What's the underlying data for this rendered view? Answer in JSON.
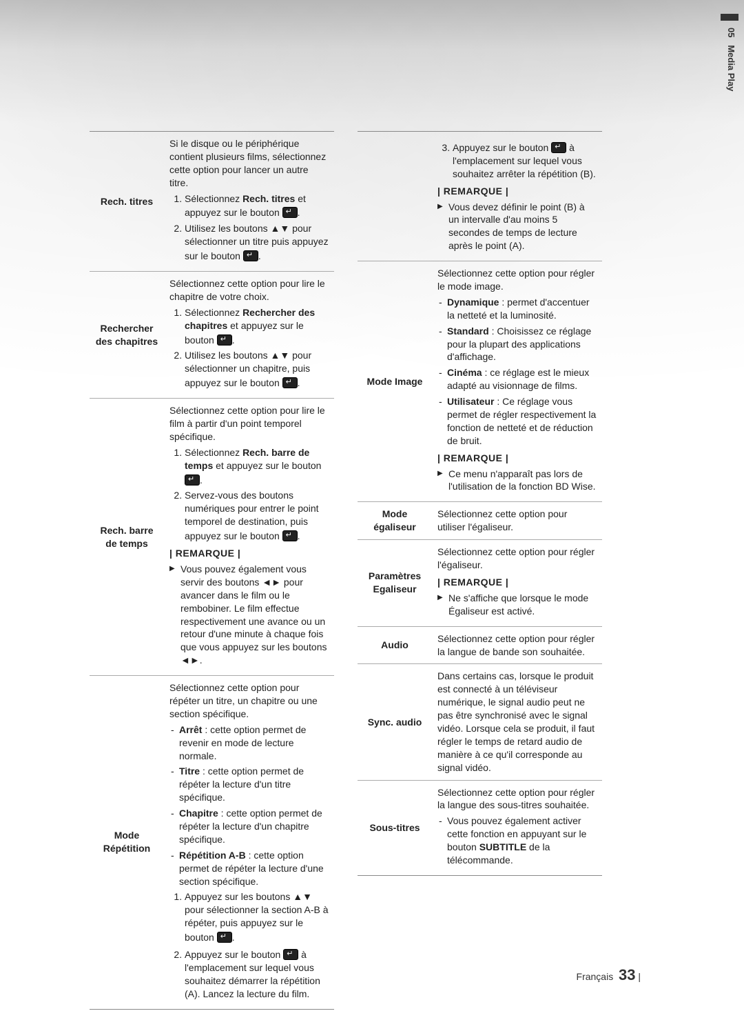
{
  "sideTab": {
    "chapter": "05",
    "label": "Media Play"
  },
  "footer": {
    "lang": "Français",
    "page": "33"
  },
  "remarqueLabel": "| REMARQUE |",
  "left": {
    "rechTitres": {
      "label": "Rech. titres",
      "intro": "Si le disque ou le périphérique contient plusieurs films, sélectionnez cette option pour lancer un autre titre.",
      "step1_a": "Sélectionnez ",
      "step1_b": "Rech. titres",
      "step1_c": " et appuyez sur le bouton ",
      "step2_a": "Utilisez les boutons ▲▼ pour sélectionner un titre puis appuyez sur le bouton "
    },
    "rechChapitres": {
      "label": "Rechercher des chapitres",
      "intro": "Sélectionnez cette option pour lire le chapitre de votre choix.",
      "step1_a": "Sélectionnez ",
      "step1_b": "Rechercher des chapitres",
      "step1_c": " et appuyez sur le bouton ",
      "step2_a": "Utilisez les boutons ▲▼ pour sélectionner un chapitre, puis appuyez sur le bouton "
    },
    "rechBarre": {
      "label": "Rech. barre de temps",
      "intro": "Sélectionnez cette option pour lire le film à partir d'un point temporel spécifique.",
      "step1_a": "Sélectionnez ",
      "step1_b": "Rech. barre de temps",
      "step1_c": " et appuyez sur le bouton ",
      "step2_a": "Servez-vous des boutons numériques pour entrer le point temporel de destination, puis appuyez sur le bouton ",
      "note1": "Vous pouvez également vous servir des boutons ◄► pour avancer dans le film ou le rembobiner. Le film effectue respectivement une avance ou un retour d'une minute à chaque fois que vous appuyez sur les boutons ◄►."
    },
    "modeRep": {
      "label": "Mode Répétition",
      "intro": "Sélectionnez cette option pour répéter un titre, un chapitre ou une section spécifique.",
      "li1_b": "Arrêt",
      "li1_t": " : cette option permet de revenir en mode de lecture normale.",
      "li2_b": "Titre",
      "li2_t": " : cette option permet de répéter la lecture d'un titre spécifique.",
      "li3_b": "Chapitre",
      "li3_t": " : cette option permet de répéter la lecture d'un chapitre spécifique.",
      "li4_b": "Répétition A-B",
      "li4_t": " : cette option permet de répéter la lecture d'une section spécifique.",
      "step1": "Appuyez sur les boutons ▲▼ pour sélectionner la section A-B à répéter, puis appuyez sur le bouton ",
      "step2_a": "Appuyez sur le bouton ",
      "step2_b": " à l'emplacement sur lequel vous souhaitez démarrer la répétition (A). Lancez la lecture du film."
    }
  },
  "right": {
    "contRep": {
      "step3_a": "Appuyez sur le bouton ",
      "step3_b": " à l'emplacement sur lequel vous souhaitez arrêter la répétition (B).",
      "note1": "Vous devez définir le point (B) à un intervalle d'au moins 5 secondes de temps de lecture après le point (A)."
    },
    "modeImage": {
      "label": "Mode Image",
      "intro": "Sélectionnez cette option pour régler le mode image.",
      "li1_b": "Dynamique",
      "li1_t": " : permet d'accentuer la netteté et la luminosité.",
      "li2_b": "Standard",
      "li2_t": " : Choisissez ce réglage pour la plupart des applications d'affichage.",
      "li3_b": "Cinéma",
      "li3_t": " : ce réglage est le mieux adapté au visionnage de films.",
      "li4_b": "Utilisateur",
      "li4_t": " : Ce réglage vous permet de régler respectivement la fonction de netteté et de réduction de bruit.",
      "note1": "Ce menu n'apparaît pas lors de l'utilisation de la fonction BD Wise."
    },
    "modeEgal": {
      "label": "Mode égaliseur",
      "text": "Sélectionnez cette option pour utiliser l'égaliseur."
    },
    "paramEgal": {
      "label": "Paramètres Egaliseur",
      "text": "Sélectionnez cette option pour régler l'égaliseur.",
      "note1": "Ne s'affiche que lorsque le mode Égaliseur est activé."
    },
    "audio": {
      "label": "Audio",
      "text": "Sélectionnez cette option pour régler la langue de bande son souhaitée."
    },
    "syncAudio": {
      "label": "Sync. audio",
      "text": "Dans certains cas, lorsque le produit est connecté à un téléviseur numérique, le signal audio peut ne pas être synchronisé avec le signal vidéo. Lorsque cela se produit, il faut régler le temps de retard audio de manière à ce qu'il corresponde au signal vidéo."
    },
    "sousTitres": {
      "label": "Sous-titres",
      "intro": "Sélectionnez cette option pour régler la langue des sous-titres souhaitée.",
      "li1_a": "Vous pouvez également activer cette fonction en appuyant sur le bouton ",
      "li1_b": "SUBTITLE",
      "li1_c": " de la télécommande."
    }
  }
}
